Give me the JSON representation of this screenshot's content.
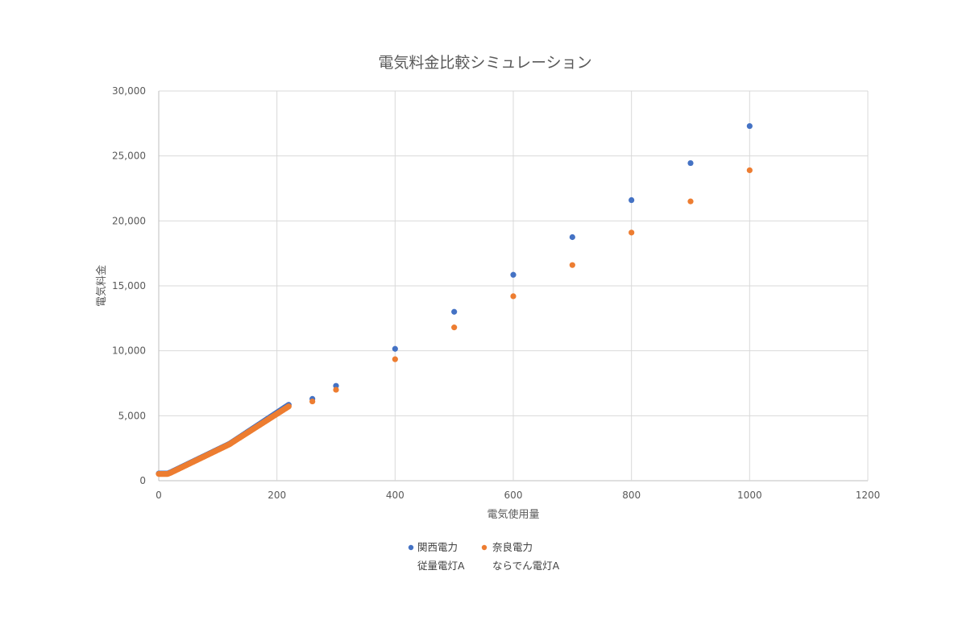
{
  "chart_data": {
    "type": "scatter",
    "title": "電気料金比較シミュレーション",
    "xlabel": "電気使用量",
    "ylabel": "電気料金",
    "xlim": [
      0,
      1200
    ],
    "ylim": [
      0,
      30000
    ],
    "x_ticks": [
      "0",
      "200",
      "400",
      "600",
      "800",
      "1000",
      "1200"
    ],
    "y_ticks": [
      "0",
      "5,000",
      "10,000",
      "15,000",
      "20,000",
      "25,000",
      "30,000"
    ],
    "grid": true,
    "legend_position": "bottom",
    "series": [
      {
        "name": "関西電力",
        "subtitle": "従量電灯A",
        "color": "#4472c4",
        "points": [
          [
            0,
            550
          ],
          [
            10,
            550
          ],
          [
            15,
            550
          ],
          [
            20,
            640
          ],
          [
            30,
            860
          ],
          [
            40,
            1080
          ],
          [
            50,
            1300
          ],
          [
            60,
            1520
          ],
          [
            70,
            1740
          ],
          [
            80,
            1960
          ],
          [
            90,
            2180
          ],
          [
            100,
            2400
          ],
          [
            110,
            2620
          ],
          [
            120,
            2840
          ],
          [
            130,
            3140
          ],
          [
            140,
            3440
          ],
          [
            150,
            3740
          ],
          [
            160,
            4040
          ],
          [
            170,
            4340
          ],
          [
            180,
            4640
          ],
          [
            190,
            4940
          ],
          [
            200,
            5240
          ],
          [
            210,
            5540
          ],
          [
            220,
            5840
          ],
          [
            260,
            6300
          ],
          [
            300,
            7300
          ],
          [
            400,
            10150
          ],
          [
            500,
            13000
          ],
          [
            600,
            15850
          ],
          [
            700,
            18750
          ],
          [
            800,
            21600
          ],
          [
            900,
            24450
          ],
          [
            1000,
            27300
          ]
        ]
      },
      {
        "name": "奈良電力",
        "subtitle": "ならでん電灯A",
        "color": "#ed7d31",
        "points": [
          [
            0,
            520
          ],
          [
            10,
            520
          ],
          [
            15,
            520
          ],
          [
            20,
            610
          ],
          [
            30,
            830
          ],
          [
            40,
            1050
          ],
          [
            50,
            1270
          ],
          [
            60,
            1490
          ],
          [
            70,
            1710
          ],
          [
            80,
            1930
          ],
          [
            90,
            2150
          ],
          [
            100,
            2370
          ],
          [
            110,
            2590
          ],
          [
            120,
            2810
          ],
          [
            130,
            3110
          ],
          [
            140,
            3400
          ],
          [
            150,
            3690
          ],
          [
            160,
            3980
          ],
          [
            170,
            4270
          ],
          [
            180,
            4560
          ],
          [
            190,
            4850
          ],
          [
            200,
            5140
          ],
          [
            210,
            5430
          ],
          [
            220,
            5720
          ],
          [
            260,
            6100
          ],
          [
            300,
            7000
          ],
          [
            400,
            9350
          ],
          [
            500,
            11800
          ],
          [
            600,
            14200
          ],
          [
            700,
            16600
          ],
          [
            800,
            19100
          ],
          [
            900,
            21500
          ],
          [
            1000,
            23900
          ]
        ]
      }
    ]
  }
}
